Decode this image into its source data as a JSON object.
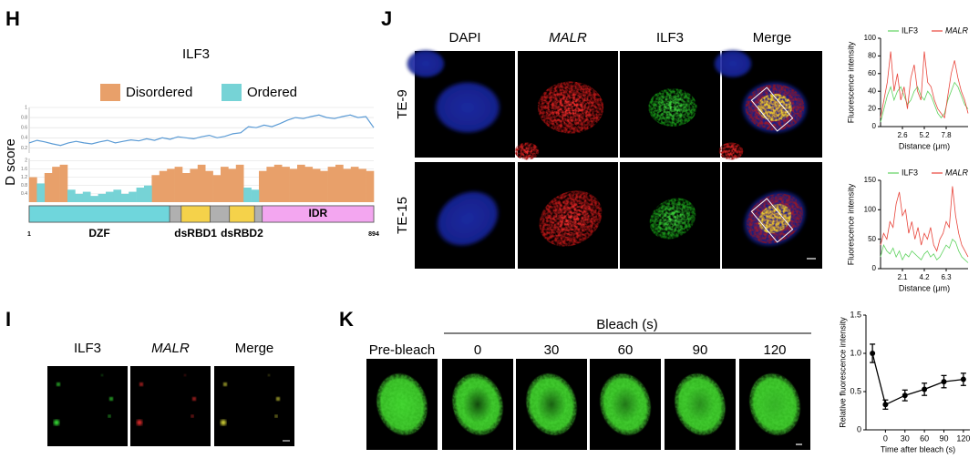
{
  "panels": {
    "H": {
      "label": "H",
      "title": "ILF3",
      "y_label": "D score",
      "dscore": {
        "color": "#5b9bd5",
        "ylim": [
          0.1,
          1
        ],
        "yticks": [
          0.2,
          0.4,
          0.6,
          0.8,
          1
        ],
        "values": [
          0.3,
          0.35,
          0.32,
          0.28,
          0.25,
          0.3,
          0.33,
          0.3,
          0.28,
          0.32,
          0.35,
          0.3,
          0.33,
          0.36,
          0.34,
          0.38,
          0.35,
          0.4,
          0.37,
          0.42,
          0.4,
          0.38,
          0.42,
          0.45,
          0.4,
          0.43,
          0.48,
          0.5,
          0.62,
          0.6,
          0.65,
          0.62,
          0.68,
          0.75,
          0.8,
          0.78,
          0.82,
          0.85,
          0.8,
          0.78,
          0.82,
          0.85,
          0.8,
          0.82,
          0.6
        ]
      },
      "bars": {
        "ylim": [
          0,
          2.1
        ],
        "yticks": [
          0.4,
          0.8,
          1.2,
          1.6,
          2
        ],
        "series": [
          {
            "name": "Disordered",
            "color": "#e8a06a",
            "values": [
              1.2,
              null,
              1.4,
              1.7,
              1.8,
              null,
              null,
              null,
              null,
              null,
              null,
              null,
              null,
              null,
              null,
              null,
              1.3,
              1.5,
              1.6,
              1.7,
              1.4,
              1.6,
              1.8,
              1.5,
              1.3,
              1.7,
              1.6,
              1.8,
              null,
              null,
              1.5,
              1.7,
              1.8,
              1.7,
              1.6,
              1.8,
              1.7,
              1.6,
              1.5,
              1.7,
              1.8,
              1.6,
              1.7,
              1.6,
              1.5
            ]
          },
          {
            "name": "Ordered",
            "color": "#76d3d6",
            "values": [
              null,
              0.9,
              null,
              null,
              null,
              0.6,
              0.4,
              0.5,
              0.3,
              0.4,
              0.5,
              0.6,
              0.4,
              0.5,
              0.7,
              0.8,
              null,
              null,
              null,
              null,
              null,
              null,
              null,
              null,
              null,
              null,
              null,
              null,
              0.7,
              0.6,
              null,
              null,
              null,
              null,
              null,
              null,
              null,
              null,
              null,
              null,
              null,
              null,
              null,
              null,
              null
            ]
          }
        ]
      },
      "domains": {
        "range": [
          1,
          894
        ],
        "linker_color": "#b0b0b0",
        "items": [
          {
            "name": "DZF",
            "start": 1,
            "end": 365,
            "color": "#6fd6dc"
          },
          {
            "name": "dsRBD1",
            "start": 395,
            "end": 470,
            "color": "#f5d24a"
          },
          {
            "name": "dsRBD2",
            "start": 520,
            "end": 585,
            "color": "#f5d24a"
          },
          {
            "name": "IDR",
            "start": 605,
            "end": 894,
            "color": "#f3a6f0"
          }
        ]
      }
    },
    "I": {
      "label": "I",
      "columns": [
        {
          "text": "ILF3",
          "color": "#1db33a"
        },
        {
          "text": "MALR",
          "color": "#e0201b",
          "italic": true
        },
        {
          "text": "Merge",
          "color": "#000000"
        }
      ]
    },
    "J": {
      "label": "J",
      "columns": [
        {
          "text": "DAPI",
          "color": "#000000"
        },
        {
          "text": "MALR",
          "color": "#e0201b",
          "italic": true
        },
        {
          "text": "ILF3",
          "color": "#1db33a"
        },
        {
          "text": "Merge",
          "color": "#000000"
        }
      ],
      "rows": [
        "TE-9",
        "TE-15"
      ],
      "charts": [
        {
          "type": "line",
          "y_label": "Fluorescence intensity",
          "x_label": "Distance (μm)",
          "xlim": [
            0,
            10.4
          ],
          "xticks": [
            2.6,
            5.2,
            7.8
          ],
          "ylim": [
            0,
            100
          ],
          "yticks": [
            0,
            20,
            40,
            60,
            80,
            100
          ],
          "x": [
            0,
            0.4,
            0.8,
            1.2,
            1.6,
            2,
            2.4,
            2.8,
            3.2,
            3.6,
            4,
            4.4,
            4.8,
            5.2,
            5.6,
            6,
            6.4,
            6.8,
            7.2,
            7.6,
            8,
            8.4,
            8.8,
            9.2,
            9.6,
            10,
            10.4
          ],
          "series": [
            {
              "name": "ILF3",
              "color": "#5fd35f",
              "values": [
                5,
                20,
                35,
                45,
                30,
                40,
                45,
                35,
                25,
                30,
                40,
                45,
                35,
                30,
                40,
                35,
                25,
                15,
                10,
                15,
                30,
                40,
                50,
                45,
                35,
                25,
                20
              ]
            },
            {
              "name": "MALR",
              "color": "#e8443a",
              "italic": true,
              "values": [
                10,
                30,
                50,
                85,
                40,
                60,
                30,
                45,
                20,
                55,
                70,
                40,
                30,
                85,
                50,
                45,
                30,
                20,
                15,
                10,
                35,
                60,
                75,
                55,
                40,
                30,
                15
              ]
            }
          ]
        },
        {
          "type": "line",
          "y_label": "Fluorescence intensity",
          "x_label": "Distance (μm)",
          "xlim": [
            0,
            8.4
          ],
          "xticks": [
            2.1,
            4.2,
            6.3
          ],
          "ylim": [
            0,
            150
          ],
          "yticks": [
            0,
            50,
            100,
            150
          ],
          "x": [
            0,
            0.3,
            0.6,
            0.9,
            1.2,
            1.5,
            1.8,
            2.1,
            2.4,
            2.7,
            3,
            3.3,
            3.6,
            3.9,
            4.2,
            4.5,
            4.8,
            5.1,
            5.4,
            5.7,
            6,
            6.3,
            6.6,
            6.9,
            7.2,
            7.5,
            7.8,
            8.1,
            8.4
          ],
          "series": [
            {
              "name": "ILF3",
              "color": "#5fd35f",
              "values": [
                20,
                40,
                30,
                25,
                35,
                20,
                30,
                15,
                25,
                20,
                30,
                25,
                20,
                15,
                25,
                30,
                20,
                25,
                15,
                20,
                30,
                40,
                35,
                50,
                45,
                30,
                20,
                15,
                10
              ]
            },
            {
              "name": "MALR",
              "color": "#e8443a",
              "italic": true,
              "values": [
                40,
                60,
                50,
                80,
                70,
                110,
                130,
                90,
                100,
                60,
                80,
                50,
                70,
                40,
                60,
                50,
                70,
                40,
                30,
                50,
                60,
                80,
                70,
                140,
                90,
                60,
                40,
                30,
                20
              ]
            }
          ]
        }
      ]
    },
    "K": {
      "label": "K",
      "group_label": "Bleach (s)",
      "frames": [
        "Pre-bleach",
        "0",
        "30",
        "60",
        "90",
        "120"
      ],
      "chart": {
        "type": "line",
        "y_label": "Relative fluorescence intensity",
        "x_label": "Time after bleach (s)",
        "xlim": [
          -30,
          130
        ],
        "xticks": [
          0,
          30,
          60,
          90,
          120
        ],
        "ylim": [
          0,
          1.5
        ],
        "yticks": [
          0,
          0.5,
          {
            "value": 1,
            "label": "1.0"
          },
          1.5
        ],
        "x": [
          -20,
          0,
          30,
          60,
          90,
          120
        ],
        "series": [
          {
            "color": "#000000",
            "values": [
              1,
              0.33,
              0.45,
              0.53,
              0.63,
              0.66
            ],
            "errors": [
              0.12,
              0.06,
              0.07,
              0.08,
              0.08,
              0.08
            ]
          }
        ]
      }
    }
  }
}
